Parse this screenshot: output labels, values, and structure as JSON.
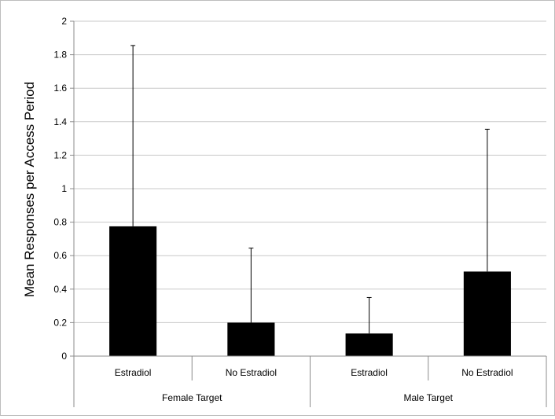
{
  "chart_data": {
    "type": "bar",
    "ylabel": "Mean Responses per Access Period",
    "ylim": [
      0,
      2
    ],
    "yticks": [
      "0",
      "0.2",
      "0.4",
      "0.6",
      "0.8",
      "1",
      "1.2",
      "1.4",
      "1.6",
      "1.8",
      "2"
    ],
    "grid": true,
    "groups": [
      {
        "label": "Female Target",
        "bars": [
          {
            "label": "Estradiol",
            "value": 0.775,
            "error": 1.08
          },
          {
            "label": "No Estradiol",
            "value": 0.2,
            "error": 0.445
          }
        ]
      },
      {
        "label": "Male Target",
        "bars": [
          {
            "label": "Estradiol",
            "value": 0.135,
            "error": 0.215
          },
          {
            "label": "No Estradiol",
            "value": 0.505,
            "error": 0.85
          }
        ]
      }
    ],
    "bar_color": "#000000",
    "grid_color": "#c8c8c8"
  }
}
